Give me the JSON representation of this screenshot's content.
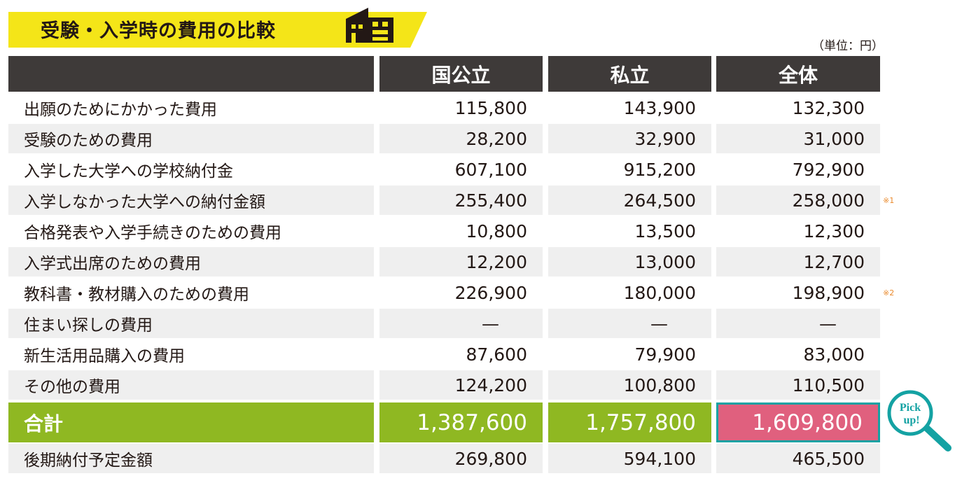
{
  "title": "受験・入学時の費用の比較",
  "unit": "（単位：円）",
  "columns": [
    "国公立",
    "私立",
    "全体"
  ],
  "rows": [
    {
      "label": "出願のためにかかった費用",
      "values": [
        "115,800",
        "143,900",
        "132,300"
      ],
      "note": ""
    },
    {
      "label": "受験のための費用",
      "values": [
        "28,200",
        "32,900",
        "31,000"
      ],
      "note": ""
    },
    {
      "label": "入学した大学への学校納付金",
      "values": [
        "607,100",
        "915,200",
        "792,900"
      ],
      "note": ""
    },
    {
      "label": "入学しなかった大学への納付金額",
      "values": [
        "255,400",
        "264,500",
        "258,000"
      ],
      "note": "※1"
    },
    {
      "label": "合格発表や入学手続きのための費用",
      "values": [
        "10,800",
        "13,500",
        "12,300"
      ],
      "note": ""
    },
    {
      "label": "入学式出席のための費用",
      "values": [
        "12,200",
        "13,000",
        "12,700"
      ],
      "note": ""
    },
    {
      "label": "教科書・教材購入のための費用",
      "values": [
        "226,900",
        "180,000",
        "198,900"
      ],
      "note": "※2"
    },
    {
      "label": "住まい探しの費用",
      "values": [
        "—",
        "—",
        "—"
      ],
      "note": ""
    },
    {
      "label": "新生活用品購入の費用",
      "values": [
        "87,600",
        "79,900",
        "83,000"
      ],
      "note": ""
    },
    {
      "label": "その他の費用",
      "values": [
        "124,200",
        "100,800",
        "110,500"
      ],
      "note": ""
    }
  ],
  "total": {
    "label": "合計",
    "values": [
      "1,387,600",
      "1,757,800",
      "1,609,800"
    ]
  },
  "deferred": {
    "label": "後期納付予定金額",
    "values": [
      "269,800",
      "594,100",
      "465,500"
    ]
  },
  "pickup_badge": {
    "line1": "Pick",
    "line2": "up!"
  },
  "colors": {
    "banner": "#f4e518",
    "header": "#3e3a39",
    "total": "#8fb822",
    "highlight": "#e0607e",
    "accent": "#14a2a3",
    "note": "#ea8a2c"
  }
}
